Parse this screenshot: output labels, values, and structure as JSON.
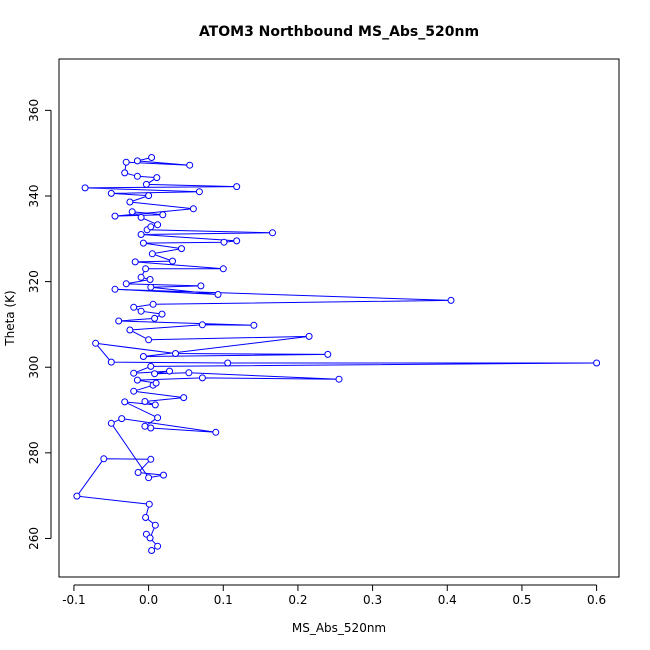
{
  "chart_data": {
    "type": "line",
    "title": "ATOM3 Northbound MS_Abs_520nm",
    "xlabel": "MS_Abs_520nm",
    "ylabel": "Theta (K)",
    "xlim": [
      -0.12,
      0.63
    ],
    "ylim": [
      251,
      372
    ],
    "xticks": [
      -0.1,
      0.0,
      0.1,
      0.2,
      0.3,
      0.4,
      0.5,
      0.6
    ],
    "xtick_labels": [
      "-0.1",
      "0.0",
      "0.1",
      "0.2",
      "0.3",
      "0.4",
      "0.5",
      "0.6"
    ],
    "yticks": [
      260,
      280,
      300,
      320,
      340,
      360
    ],
    "ytick_labels": [
      "260",
      "280",
      "300",
      "320",
      "340",
      "360"
    ],
    "color": "#0000ff",
    "series": [
      {
        "points": [
          [
            0.004,
            257.2
          ],
          [
            0.012,
            258.2
          ],
          [
            -0.003,
            261.0
          ],
          [
            0.002,
            260.1
          ],
          [
            0.009,
            263.1
          ],
          [
            -0.004,
            264.9
          ],
          [
            0.001,
            268.0
          ],
          [
            -0.096,
            269.9
          ],
          [
            -0.06,
            278.6
          ],
          [
            0.003,
            278.5
          ],
          [
            -0.014,
            275.4
          ],
          [
            0.02,
            274.8
          ],
          [
            0.0,
            274.2
          ],
          [
            -0.05,
            286.9
          ],
          [
            -0.036,
            288.0
          ],
          [
            0.09,
            284.8
          ],
          [
            0.003,
            285.8
          ],
          [
            -0.005,
            286.2
          ],
          [
            0.012,
            288.2
          ],
          [
            -0.032,
            291.9
          ],
          [
            0.009,
            291.2
          ],
          [
            -0.005,
            292.0
          ],
          [
            0.047,
            292.9
          ],
          [
            -0.02,
            294.4
          ],
          [
            0.006,
            295.8
          ],
          [
            0.01,
            296.3
          ],
          [
            -0.015,
            297.0
          ],
          [
            0.072,
            297.5
          ],
          [
            0.255,
            297.2
          ],
          [
            0.054,
            298.7
          ],
          [
            0.008,
            298.5
          ],
          [
            0.028,
            299.1
          ],
          [
            -0.02,
            298.6
          ],
          [
            0.003,
            300.2
          ],
          [
            0.6,
            301.0
          ],
          [
            0.106,
            301.0
          ],
          [
            -0.05,
            301.2
          ],
          [
            -0.071,
            305.6
          ],
          [
            0.036,
            303.2
          ],
          [
            0.24,
            303.0
          ],
          [
            -0.007,
            302.5
          ],
          [
            0.215,
            307.2
          ],
          [
            0.0,
            306.4
          ],
          [
            -0.025,
            308.7
          ],
          [
            0.072,
            309.9
          ],
          [
            0.141,
            309.8
          ],
          [
            -0.04,
            310.8
          ],
          [
            0.008,
            311.4
          ],
          [
            0.018,
            312.4
          ],
          [
            -0.01,
            313.1
          ],
          [
            -0.02,
            314.0
          ],
          [
            0.006,
            314.7
          ],
          [
            0.405,
            315.6
          ],
          [
            -0.045,
            318.2
          ],
          [
            0.093,
            317.0
          ],
          [
            0.003,
            318.7
          ],
          [
            0.07,
            319.0
          ],
          [
            -0.03,
            319.5
          ],
          [
            0.002,
            320.5
          ],
          [
            -0.01,
            321.0
          ],
          [
            -0.004,
            323.0
          ],
          [
            0.1,
            323.0
          ],
          [
            -0.018,
            324.6
          ],
          [
            0.032,
            324.8
          ],
          [
            0.005,
            326.5
          ],
          [
            0.044,
            327.7
          ],
          [
            -0.007,
            329.0
          ],
          [
            0.101,
            329.2
          ],
          [
            0.118,
            329.5
          ],
          [
            -0.01,
            331.0
          ],
          [
            0.166,
            331.4
          ],
          [
            -0.002,
            332.1
          ],
          [
            0.003,
            332.8
          ],
          [
            0.012,
            333.3
          ],
          [
            -0.01,
            335.0
          ],
          [
            -0.022,
            336.3
          ],
          [
            0.019,
            335.6
          ],
          [
            -0.045,
            335.3
          ],
          [
            0.06,
            337.0
          ],
          [
            -0.025,
            338.6
          ],
          [
            0.0,
            340.1
          ],
          [
            -0.05,
            340.6
          ],
          [
            0.068,
            341.0
          ],
          [
            -0.085,
            341.9
          ],
          [
            0.118,
            342.2
          ],
          [
            -0.003,
            342.7
          ],
          [
            0.011,
            344.3
          ],
          [
            -0.015,
            344.6
          ],
          [
            -0.032,
            345.4
          ],
          [
            -0.03,
            347.9
          ],
          [
            0.055,
            347.2
          ],
          [
            -0.015,
            348.2
          ],
          [
            0.004,
            349.0
          ]
        ]
      }
    ],
    "grid": false,
    "legend": "none"
  }
}
